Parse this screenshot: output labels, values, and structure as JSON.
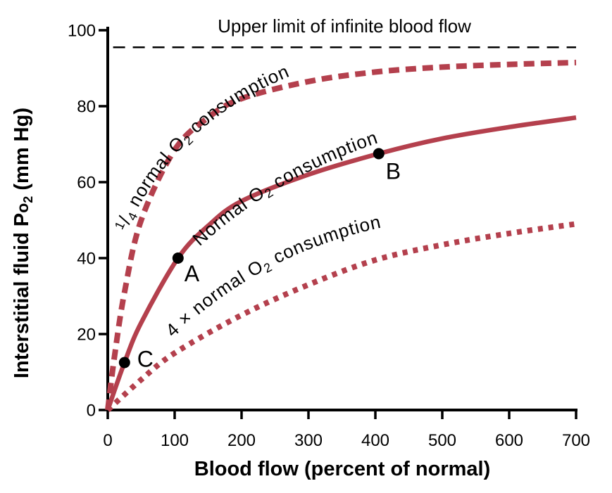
{
  "chart_data": {
    "type": "line",
    "title": "",
    "xlabel": "Blood flow (percent of normal)",
    "ylabel": "Interstitial fluid Po2 (mm Hg)",
    "xlim": [
      0,
      700
    ],
    "ylim": [
      0,
      100
    ],
    "x_ticks": [
      0,
      100,
      200,
      300,
      400,
      500,
      600,
      700
    ],
    "y_ticks": [
      0,
      20,
      40,
      60,
      80,
      100
    ],
    "grid": false,
    "legend_position": "labels-along-curves",
    "reference_line": {
      "y": 95.5,
      "label": "Upper limit of infinite blood flow",
      "style": "dashed",
      "color": "#000000"
    },
    "series": [
      {
        "name": "1/4 normal O2 consumption",
        "style": "dashed",
        "color": "#b4404d",
        "points": [
          [
            0,
            0
          ],
          [
            10,
            14
          ],
          [
            25,
            31
          ],
          [
            50,
            50
          ],
          [
            100,
            68.5
          ],
          [
            150,
            77
          ],
          [
            200,
            82
          ],
          [
            300,
            86.5
          ],
          [
            400,
            89
          ],
          [
            500,
            90.3
          ],
          [
            600,
            91
          ],
          [
            700,
            91.5
          ]
        ]
      },
      {
        "name": "Normal O2 consumption",
        "style": "solid",
        "color": "#b4404d",
        "points": [
          [
            0,
            0
          ],
          [
            25,
            12.5
          ],
          [
            50,
            23
          ],
          [
            105,
            40
          ],
          [
            150,
            48.5
          ],
          [
            200,
            55
          ],
          [
            300,
            62
          ],
          [
            405,
            67.5
          ],
          [
            500,
            71.5
          ],
          [
            600,
            74.5
          ],
          [
            700,
            77
          ]
        ]
      },
      {
        "name": "4 x normal O2 consumption",
        "style": "dotted",
        "color": "#b4404d",
        "points": [
          [
            0,
            0
          ],
          [
            50,
            8
          ],
          [
            100,
            15
          ],
          [
            200,
            25
          ],
          [
            300,
            33
          ],
          [
            400,
            39.5
          ],
          [
            500,
            43.5
          ],
          [
            600,
            46.5
          ],
          [
            700,
            49
          ]
        ]
      }
    ],
    "markers": [
      {
        "label": "A",
        "x": 105,
        "y": 40
      },
      {
        "label": "B",
        "x": 405,
        "y": 67.5
      },
      {
        "label": "C",
        "x": 25,
        "y": 12.5
      }
    ]
  },
  "labels": {
    "quarter": {
      "frac_num": "1",
      "frac_slash": "/",
      "frac_den": "4",
      "pre": " normal O",
      "sub": "2",
      "post": " consumption"
    },
    "normal": {
      "pre": "Normal O",
      "sub": "2",
      "post": " consumption"
    },
    "quad": {
      "pre": "4 × normal O",
      "sub": "2",
      "post": " consumption"
    },
    "ylabel": {
      "pre": "Interstitial fluid P",
      "o": "o",
      "sub": "2",
      "post": " (mm Hg)"
    }
  },
  "colors": {
    "curve": "#b4404d",
    "axis": "#000000",
    "background": "#ffffff"
  }
}
